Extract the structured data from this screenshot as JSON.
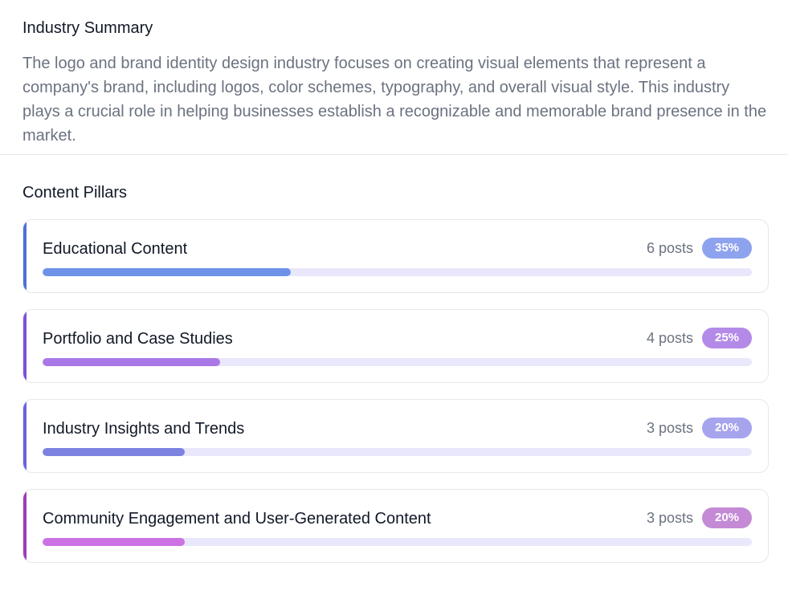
{
  "summary": {
    "title": "Industry Summary",
    "text": "The logo and brand identity design industry focuses on creating visual elements that represent a company's brand, including logos, color schemes, typography, and overall visual style. This industry plays a crucial role in helping businesses establish a recognizable and memorable brand presence in the market."
  },
  "pillars": {
    "title": "Content Pillars",
    "items": [
      {
        "name": "Educational Content",
        "posts": "6 posts",
        "percent_label": "35%",
        "percent": 35,
        "accent": "#4f6fdc",
        "badge": "#8ea3ee",
        "fill": "#6d93e8"
      },
      {
        "name": "Portfolio and Case Studies",
        "posts": "4 posts",
        "percent_label": "25%",
        "percent": 25,
        "accent": "#7e4fdc",
        "badge": "#b48ae8",
        "fill": "#a978e6"
      },
      {
        "name": "Industry Insights and Trends",
        "posts": "3 posts",
        "percent_label": "20%",
        "percent": 20,
        "accent": "#6a63dc",
        "badge": "#a7a4ee",
        "fill": "#7b82e0"
      },
      {
        "name": "Community Engagement and User-Generated Content",
        "posts": "3 posts",
        "percent_label": "20%",
        "percent": 20,
        "accent": "#9b3fb5",
        "badge": "#c48ad6",
        "fill": "#cc72e4"
      }
    ]
  }
}
